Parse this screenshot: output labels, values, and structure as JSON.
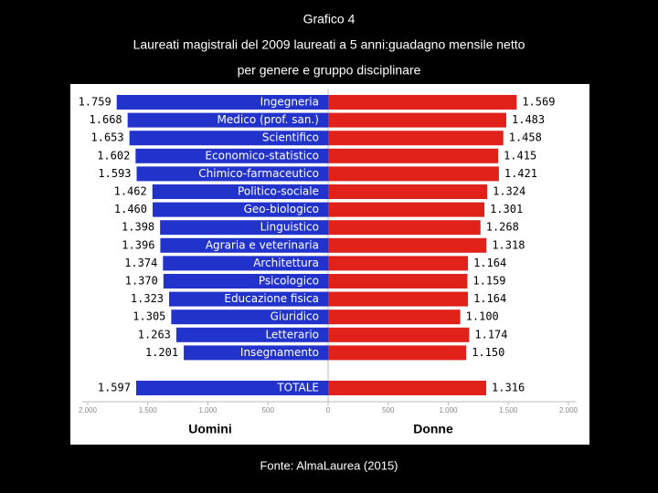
{
  "title": "Grafico 4",
  "subtitle": [
    "Laureati magistrali del 2009 laureati a 5 anni:guadagno mensile netto",
    "per genere e gruppo disciplinare"
  ],
  "source": "Fonte: AlmaLaurea (2015)",
  "chart_data": {
    "type": "butterfly",
    "categories": [
      "Ingegneria",
      "Medico (prof. san.)",
      "Scientifico",
      "Economico-statistico",
      "Chimico-farmaceutico",
      "Politico-sociale",
      "Geo-biologico",
      "Linguistico",
      "Agraria e veterinaria",
      "Architettura",
      "Psicologico",
      "Educazione fisica",
      "Giuridico",
      "Letterario",
      "Insegnamento",
      "TOTALE"
    ],
    "series": [
      {
        "name": "Uomini",
        "color": "#2233cc",
        "values": [
          1759,
          1668,
          1653,
          1602,
          1593,
          1462,
          1460,
          1398,
          1396,
          1374,
          1370,
          1323,
          1305,
          1263,
          1201,
          1597
        ],
        "value_labels": [
          "1.759",
          "1.668",
          "1.653",
          "1.602",
          "1.593",
          "1.462",
          "1.460",
          "1.398",
          "1.396",
          "1.374",
          "1.370",
          "1.323",
          "1.305",
          "1.263",
          "1.201",
          "1.597"
        ],
        "xlim": [
          2000,
          0
        ],
        "xticks": [
          {
            "value": 2000,
            "label": "2.000"
          },
          {
            "value": 1500,
            "label": "1.500"
          },
          {
            "value": 1000,
            "label": "1.000"
          },
          500
        ]
      },
      {
        "name": "Donne",
        "color": "#e0221b",
        "values": [
          1569,
          1483,
          1458,
          1415,
          1421,
          1324,
          1301,
          1268,
          1318,
          1164,
          1159,
          1164,
          1100,
          1174,
          1150,
          1316
        ],
        "value_labels": [
          "1.569",
          "1.483",
          "1.458",
          "1.415",
          "1.421",
          "1.324",
          "1.301",
          "1.268",
          "1.318",
          "1.164",
          "1.159",
          "1.164",
          "1.100",
          "1.174",
          "1.150",
          "1.316"
        ],
        "xlim": [
          0,
          2000
        ],
        "xticks": [
          0,
          500,
          {
            "value": 1000,
            "label": "1.000"
          },
          {
            "value": 1500,
            "label": "1.500"
          },
          {
            "value": 2000,
            "label": "2.000"
          }
        ]
      }
    ]
  }
}
